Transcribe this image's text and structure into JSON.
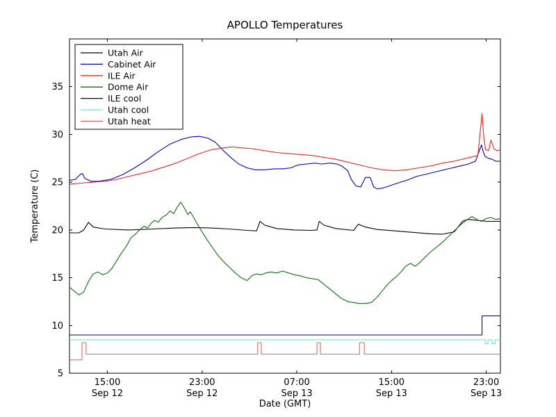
{
  "window": {
    "title": "APOLLO Temperatures"
  },
  "chart_data": {
    "type": "line",
    "title": "APOLLO Temperatures",
    "xlabel": "Date (GMT)",
    "ylabel": "Temperature (C)",
    "xlim": [
      0,
      36.4
    ],
    "ylim": [
      5,
      40
    ],
    "grid": false,
    "legend_position": "upper-left",
    "yticks": [
      5,
      10,
      15,
      20,
      25,
      30,
      35
    ],
    "xticks": [
      {
        "t": 3.2,
        "time": "15:00",
        "date": "Sep 12"
      },
      {
        "t": 11.2,
        "time": "23:00",
        "date": "Sep 12"
      },
      {
        "t": 19.2,
        "time": "07:00",
        "date": "Sep 13"
      },
      {
        "t": 27.2,
        "time": "15:00",
        "date": "Sep 13"
      },
      {
        "t": 35.2,
        "time": "23:00",
        "date": "Sep 13"
      }
    ],
    "x_unit": "hours from left edge of plot",
    "series": [
      {
        "name": "Utah Air",
        "color": "#000000",
        "points": [
          [
            0,
            19.7
          ],
          [
            0.8,
            19.7
          ],
          [
            1.2,
            20.0
          ],
          [
            1.6,
            20.8
          ],
          [
            2.0,
            20.3
          ],
          [
            3,
            20.1
          ],
          [
            5,
            20.0
          ],
          [
            7,
            20.1
          ],
          [
            9,
            20.2
          ],
          [
            10.5,
            20.25
          ],
          [
            12,
            20.2
          ],
          [
            13.5,
            20.1
          ],
          [
            15,
            19.95
          ],
          [
            15.8,
            19.9
          ],
          [
            16.1,
            20.9
          ],
          [
            16.5,
            20.5
          ],
          [
            17.5,
            20.15
          ],
          [
            19,
            20.0
          ],
          [
            20.5,
            19.95
          ],
          [
            20.9,
            20.0
          ],
          [
            21.1,
            20.9
          ],
          [
            21.5,
            20.5
          ],
          [
            22.5,
            20.15
          ],
          [
            24,
            19.95
          ],
          [
            24.4,
            20.6
          ],
          [
            25,
            20.3
          ],
          [
            26,
            20.05
          ],
          [
            27.5,
            19.9
          ],
          [
            29,
            19.75
          ],
          [
            30.5,
            19.6
          ],
          [
            31.5,
            19.55
          ],
          [
            32.5,
            19.8
          ],
          [
            33.2,
            20.9
          ],
          [
            33.6,
            21.1
          ],
          [
            34.5,
            21.0
          ],
          [
            35.3,
            20.9
          ],
          [
            36.4,
            20.9
          ]
        ]
      },
      {
        "name": "Cabinet Air",
        "color": "#0000cc",
        "points": [
          [
            0,
            25.2
          ],
          [
            0.5,
            25.3
          ],
          [
            0.9,
            25.8
          ],
          [
            1.1,
            25.9
          ],
          [
            1.3,
            25.4
          ],
          [
            1.8,
            25.1
          ],
          [
            2.5,
            25.1
          ],
          [
            3.5,
            25.3
          ],
          [
            4.5,
            25.8
          ],
          [
            5.5,
            26.5
          ],
          [
            6.5,
            27.3
          ],
          [
            7.5,
            28.2
          ],
          [
            8.5,
            29.0
          ],
          [
            9.5,
            29.5
          ],
          [
            10.3,
            29.75
          ],
          [
            11,
            29.8
          ],
          [
            11.7,
            29.6
          ],
          [
            12.3,
            29.2
          ],
          [
            13,
            28.3
          ],
          [
            13.7,
            27.5
          ],
          [
            14.3,
            26.9
          ],
          [
            15,
            26.5
          ],
          [
            15.7,
            26.3
          ],
          [
            16.5,
            26.3
          ],
          [
            17.3,
            26.4
          ],
          [
            18,
            26.4
          ],
          [
            18.7,
            26.5
          ],
          [
            19.3,
            26.8
          ],
          [
            20,
            26.9
          ],
          [
            20.7,
            27.0
          ],
          [
            21.3,
            26.9
          ],
          [
            22,
            27.0
          ],
          [
            22.6,
            26.9
          ],
          [
            23,
            26.7
          ],
          [
            23.5,
            26.2
          ],
          [
            23.8,
            25.3
          ],
          [
            24.2,
            24.6
          ],
          [
            24.6,
            24.5
          ],
          [
            25,
            25.5
          ],
          [
            25.4,
            25.5
          ],
          [
            25.7,
            24.5
          ],
          [
            26,
            24.3
          ],
          [
            26.5,
            24.4
          ],
          [
            27,
            24.6
          ],
          [
            27.7,
            24.9
          ],
          [
            28.5,
            25.2
          ],
          [
            29.3,
            25.6
          ],
          [
            30,
            25.8
          ],
          [
            31,
            26.1
          ],
          [
            32,
            26.4
          ],
          [
            33,
            26.7
          ],
          [
            33.7,
            26.9
          ],
          [
            34.3,
            27.2
          ],
          [
            34.8,
            28.9
          ],
          [
            34.95,
            28.2
          ],
          [
            35.1,
            27.7
          ],
          [
            35.4,
            27.5
          ],
          [
            35.7,
            27.4
          ],
          [
            36.0,
            27.2
          ],
          [
            36.4,
            27.2
          ]
        ]
      },
      {
        "name": "ILE Air",
        "color": "#e8281e",
        "points": [
          [
            0,
            24.8
          ],
          [
            1,
            24.9
          ],
          [
            2,
            25.0
          ],
          [
            3,
            25.1
          ],
          [
            4,
            25.3
          ],
          [
            5,
            25.6
          ],
          [
            6,
            25.9
          ],
          [
            7,
            26.2
          ],
          [
            8,
            26.6
          ],
          [
            9,
            27.0
          ],
          [
            10,
            27.5
          ],
          [
            11,
            28.0
          ],
          [
            12,
            28.4
          ],
          [
            13,
            28.6
          ],
          [
            13.7,
            28.7
          ],
          [
            14.5,
            28.6
          ],
          [
            15.5,
            28.5
          ],
          [
            16.5,
            28.3
          ],
          [
            17.5,
            28.1
          ],
          [
            18.5,
            28.0
          ],
          [
            19.5,
            27.9
          ],
          [
            20.5,
            27.8
          ],
          [
            21.5,
            27.6
          ],
          [
            22.5,
            27.4
          ],
          [
            23.5,
            27.1
          ],
          [
            24.5,
            26.8
          ],
          [
            25.5,
            26.5
          ],
          [
            26.5,
            26.3
          ],
          [
            27.5,
            26.2
          ],
          [
            28.5,
            26.3
          ],
          [
            29.5,
            26.5
          ],
          [
            30.5,
            26.7
          ],
          [
            31.5,
            27.0
          ],
          [
            32.5,
            27.2
          ],
          [
            33.5,
            27.5
          ],
          [
            34.5,
            27.8
          ],
          [
            34.85,
            32.2
          ],
          [
            35.0,
            29.6
          ],
          [
            35.15,
            28.4
          ],
          [
            35.4,
            28.3
          ],
          [
            35.6,
            29.4
          ],
          [
            35.85,
            28.5
          ],
          [
            36.1,
            28.3
          ],
          [
            36.4,
            28.4
          ]
        ]
      },
      {
        "name": "Dome Air",
        "color": "#0b720b",
        "points": [
          [
            0,
            14.0
          ],
          [
            0.4,
            13.6
          ],
          [
            0.8,
            13.2
          ],
          [
            1.2,
            13.5
          ],
          [
            1.6,
            14.6
          ],
          [
            2.0,
            15.4
          ],
          [
            2.4,
            15.6
          ],
          [
            2.8,
            15.3
          ],
          [
            3.2,
            15.5
          ],
          [
            3.6,
            16.0
          ],
          [
            4.0,
            16.8
          ],
          [
            4.4,
            17.6
          ],
          [
            4.8,
            18.3
          ],
          [
            5.2,
            19.2
          ],
          [
            5.6,
            19.6
          ],
          [
            6.0,
            20.1
          ],
          [
            6.3,
            20.4
          ],
          [
            6.6,
            20.2
          ],
          [
            6.9,
            20.7
          ],
          [
            7.2,
            21.0
          ],
          [
            7.5,
            20.8
          ],
          [
            7.8,
            21.3
          ],
          [
            8.2,
            21.6
          ],
          [
            8.5,
            22.0
          ],
          [
            8.8,
            21.7
          ],
          [
            9.1,
            22.4
          ],
          [
            9.4,
            22.9
          ],
          [
            9.7,
            22.3
          ],
          [
            10.0,
            21.6
          ],
          [
            10.2,
            21.9
          ],
          [
            10.5,
            21.3
          ],
          [
            10.8,
            20.6
          ],
          [
            11.2,
            19.8
          ],
          [
            11.6,
            19.0
          ],
          [
            12.0,
            18.3
          ],
          [
            12.5,
            17.4
          ],
          [
            13.0,
            16.7
          ],
          [
            13.5,
            16.1
          ],
          [
            14.0,
            15.5
          ],
          [
            14.5,
            15.0
          ],
          [
            15.0,
            14.7
          ],
          [
            15.4,
            15.2
          ],
          [
            15.8,
            15.4
          ],
          [
            16.2,
            15.3
          ],
          [
            16.6,
            15.5
          ],
          [
            17.0,
            15.6
          ],
          [
            17.5,
            15.5
          ],
          [
            18.0,
            15.7
          ],
          [
            18.5,
            15.5
          ],
          [
            19.0,
            15.3
          ],
          [
            19.5,
            15.2
          ],
          [
            20.0,
            15.0
          ],
          [
            20.5,
            14.9
          ],
          [
            21.0,
            14.8
          ],
          [
            21.5,
            14.3
          ],
          [
            22.0,
            13.8
          ],
          [
            22.5,
            13.3
          ],
          [
            23.0,
            12.8
          ],
          [
            23.5,
            12.5
          ],
          [
            24.0,
            12.4
          ],
          [
            24.5,
            12.3
          ],
          [
            25.0,
            12.3
          ],
          [
            25.5,
            12.4
          ],
          [
            26.0,
            13.0
          ],
          [
            26.4,
            13.6
          ],
          [
            26.8,
            14.2
          ],
          [
            27.2,
            14.7
          ],
          [
            27.6,
            15.1
          ],
          [
            28.0,
            15.6
          ],
          [
            28.4,
            16.2
          ],
          [
            28.8,
            16.5
          ],
          [
            29.2,
            16.2
          ],
          [
            29.6,
            16.6
          ],
          [
            30.0,
            17.1
          ],
          [
            30.5,
            17.7
          ],
          [
            31.0,
            18.2
          ],
          [
            31.5,
            18.7
          ],
          [
            32.0,
            19.3
          ],
          [
            32.5,
            19.9
          ],
          [
            33.0,
            20.5
          ],
          [
            33.5,
            21.0
          ],
          [
            34.0,
            21.4
          ],
          [
            34.4,
            21.1
          ],
          [
            34.8,
            20.9
          ],
          [
            35.2,
            21.2
          ],
          [
            35.6,
            21.3
          ],
          [
            36.0,
            21.1
          ],
          [
            36.4,
            21.2
          ]
        ]
      },
      {
        "name": "ILE cool",
        "color": "#000066",
        "points": [
          [
            0,
            9.0
          ],
          [
            34.85,
            9.0
          ],
          [
            34.85,
            11.0
          ],
          [
            36.4,
            11.0
          ]
        ]
      },
      {
        "name": "Utah cool",
        "color": "#6fe3ec",
        "points": [
          [
            0,
            8.5
          ],
          [
            35.1,
            8.5
          ],
          [
            35.1,
            8.1
          ],
          [
            35.35,
            8.1
          ],
          [
            35.35,
            8.5
          ],
          [
            35.7,
            8.5
          ],
          [
            35.7,
            8.1
          ],
          [
            35.95,
            8.1
          ],
          [
            35.95,
            8.5
          ],
          [
            36.4,
            8.5
          ]
        ]
      },
      {
        "name": "Utah heat",
        "color": "#f4645a",
        "points": [
          [
            0,
            6.4
          ],
          [
            1.05,
            6.4
          ],
          [
            1.05,
            8.2
          ],
          [
            1.4,
            8.2
          ],
          [
            1.4,
            7.0
          ],
          [
            15.9,
            7.0
          ],
          [
            15.9,
            8.2
          ],
          [
            16.2,
            8.2
          ],
          [
            16.2,
            7.0
          ],
          [
            20.9,
            7.0
          ],
          [
            20.9,
            8.2
          ],
          [
            21.2,
            8.2
          ],
          [
            21.2,
            7.0
          ],
          [
            24.5,
            7.0
          ],
          [
            24.5,
            8.2
          ],
          [
            24.9,
            8.2
          ],
          [
            24.9,
            7.0
          ],
          [
            36.4,
            7.0
          ]
        ]
      }
    ]
  },
  "colors": {
    "background": "#ffffff",
    "axes": "#000000"
  }
}
